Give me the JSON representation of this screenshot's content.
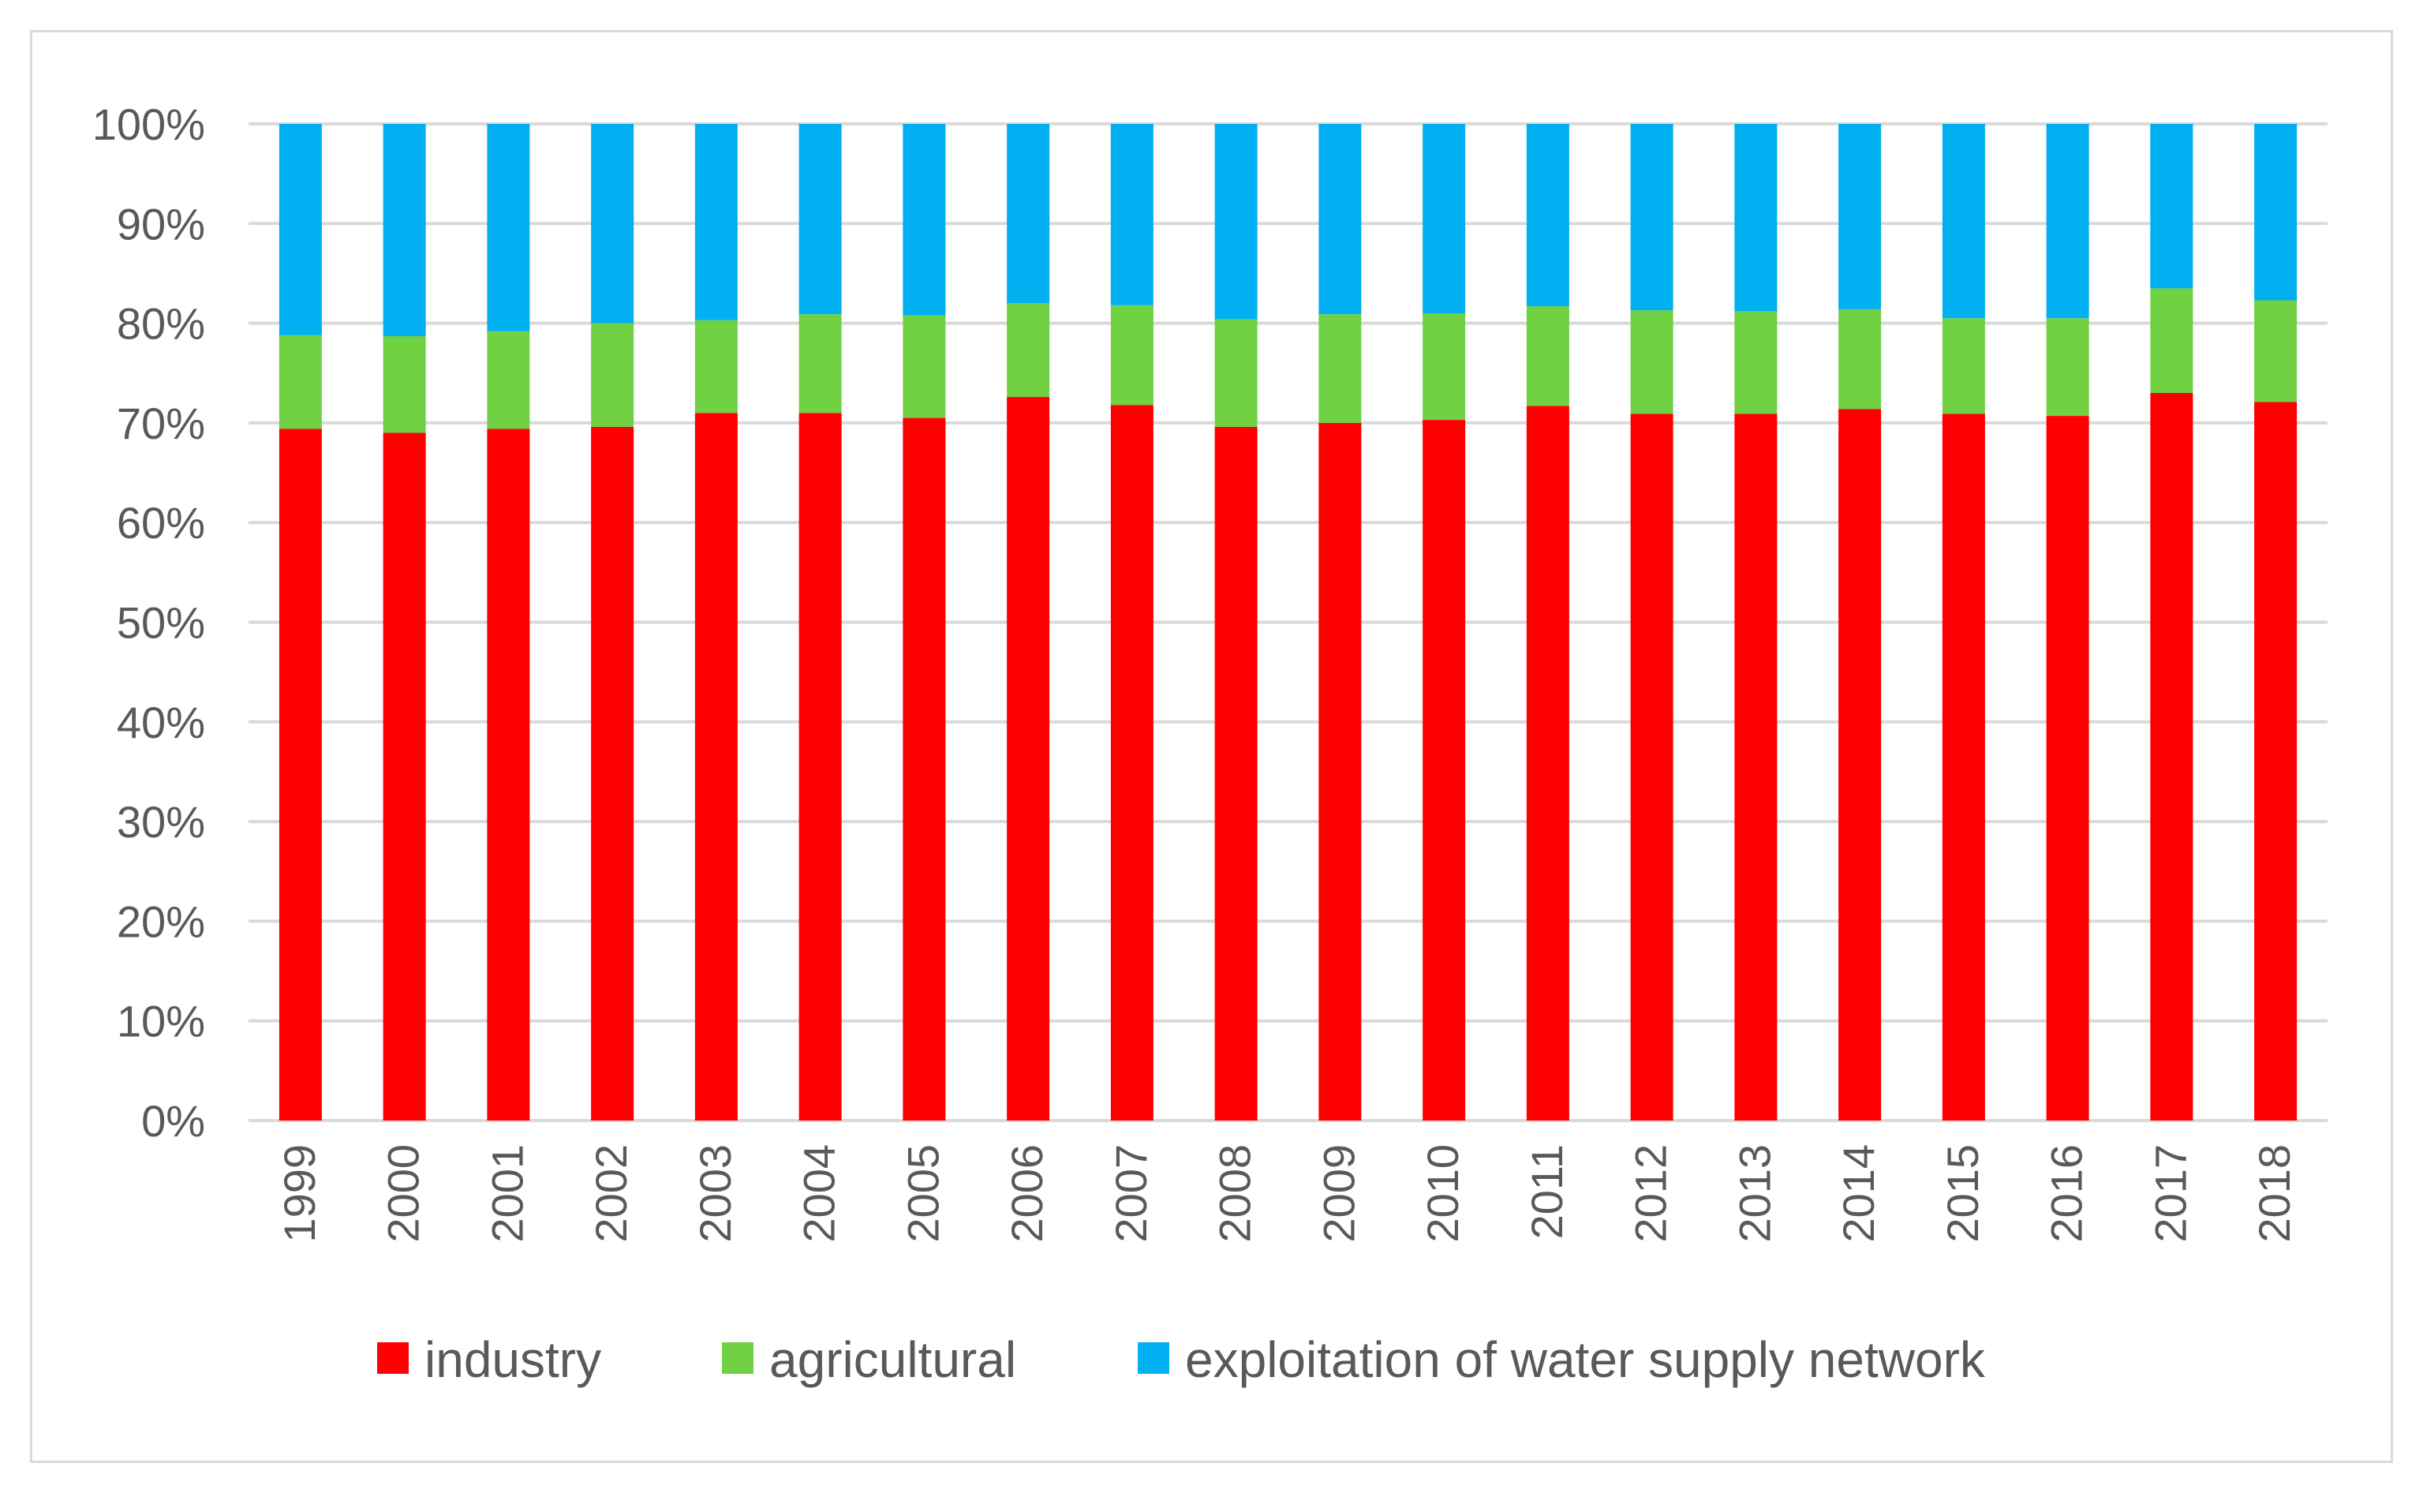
{
  "chart_data": {
    "type": "bar",
    "stacked": true,
    "categories": [
      "1999",
      "2000",
      "2001",
      "2002",
      "2003",
      "2004",
      "2005",
      "2006",
      "2007",
      "2008",
      "2009",
      "2010",
      "2011",
      "2012",
      "2013",
      "2014",
      "2015",
      "2016",
      "2017",
      "2018"
    ],
    "series": [
      {
        "name": "industry",
        "color": "#ff0000",
        "values": [
          69.4,
          69.0,
          69.4,
          69.6,
          71.0,
          71.0,
          70.5,
          72.6,
          71.8,
          69.6,
          70.0,
          70.3,
          71.7,
          70.9,
          70.9,
          71.4,
          70.9,
          70.7,
          73.0,
          72.1
        ]
      },
      {
        "name": "agricultural",
        "color": "#70d142",
        "values": [
          9.4,
          9.7,
          9.8,
          10.4,
          9.3,
          9.9,
          10.3,
          9.4,
          10.0,
          10.8,
          10.9,
          10.7,
          10.0,
          10.4,
          10.3,
          10.0,
          9.6,
          9.8,
          10.5,
          10.2
        ]
      },
      {
        "name": "exploitation of water supply network",
        "color": "#00b0f0",
        "values": [
          21.2,
          21.3,
          20.8,
          20.0,
          19.7,
          19.1,
          19.2,
          18.0,
          18.2,
          19.6,
          19.1,
          19.0,
          18.3,
          18.7,
          18.8,
          18.6,
          19.5,
          19.5,
          16.5,
          17.7
        ]
      }
    ],
    "y_ticks": [
      "0%",
      "10%",
      "20%",
      "30%",
      "40%",
      "50%",
      "60%",
      "70%",
      "80%",
      "90%",
      "100%"
    ],
    "ylim": [
      0,
      100
    ],
    "grid": true,
    "legend_position": "bottom"
  }
}
